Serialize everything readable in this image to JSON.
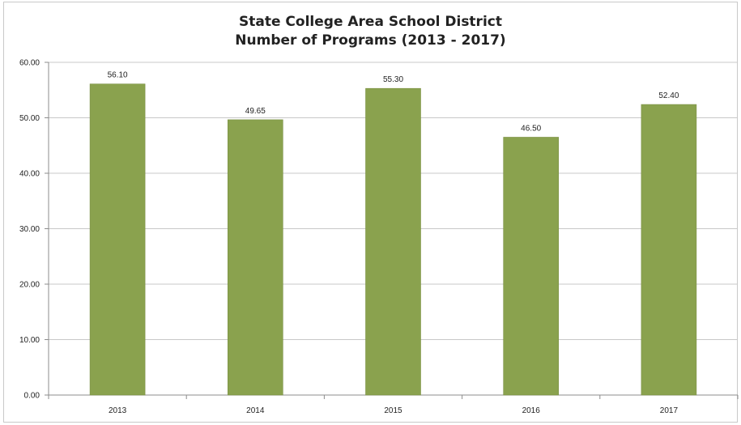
{
  "chart_data": {
    "type": "bar",
    "title_lines": [
      "State College Area School District",
      "Number of Programs (2013 - 2017)"
    ],
    "categories": [
      "2013",
      "2014",
      "2015",
      "2016",
      "2017"
    ],
    "values": [
      56.1,
      49.65,
      55.3,
      46.5,
      52.4
    ],
    "data_labels": [
      "56.10",
      "49.65",
      "55.30",
      "46.50",
      "52.40"
    ],
    "xlabel": "",
    "ylabel": "",
    "ylim": [
      0,
      60
    ],
    "yticks": [
      0,
      10,
      20,
      30,
      40,
      50,
      60
    ],
    "ytick_labels": [
      "0.00",
      "10.00",
      "20.00",
      "30.00",
      "40.00",
      "50.00",
      "60.00"
    ],
    "grid": true,
    "legend": "none",
    "colors": {
      "bar": "#8aa24e",
      "bar_edge": "#7a9044",
      "grid": "#c8c8c8",
      "axis": "#8c8c8c"
    }
  }
}
